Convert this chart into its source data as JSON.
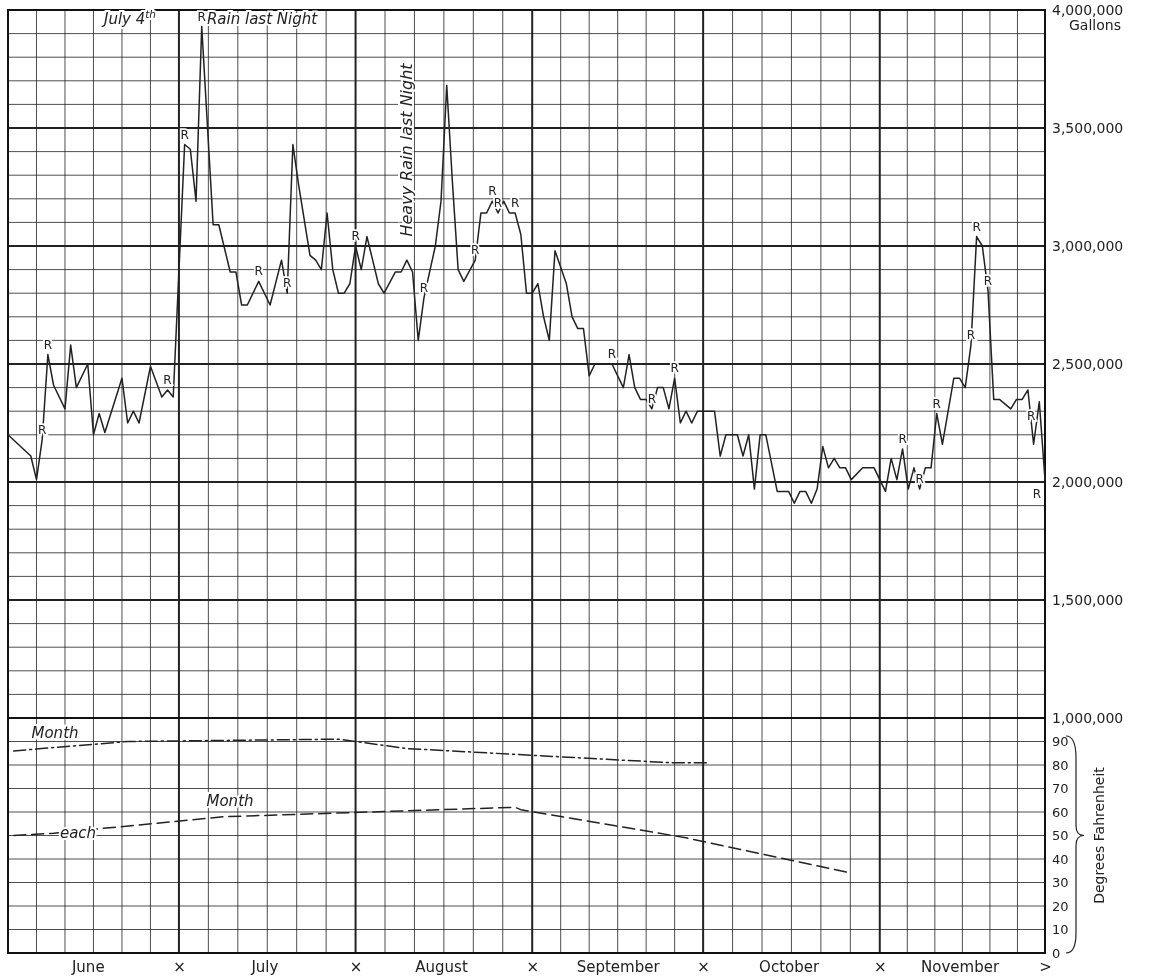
{
  "chart_data": [
    {
      "type": "line",
      "xlim": [
        "--06-01",
        "--11-30"
      ],
      "ylim": [
        1000000,
        4000000
      ],
      "xticks": [
        {
          "value": "--06-15",
          "label": null
        },
        {
          "value": "--07-01",
          "label": null
        },
        {
          "value": "--07-16",
          "label": null
        },
        {
          "value": "--08-01",
          "label": null
        },
        {
          "value": "--08-16",
          "label": null
        },
        {
          "value": "--09-01",
          "label": null
        },
        {
          "value": "--09-16",
          "label": null
        },
        {
          "value": "--10-01",
          "label": null
        },
        {
          "value": "--10-16",
          "label": null
        },
        {
          "value": "--11-01",
          "label": null
        },
        {
          "value": "--11-15",
          "label": null
        },
        {
          "value": "--11-30",
          "label": null
        }
      ],
      "yticks": [
        {
          "value": 1000000,
          "label": "1,000,000"
        },
        {
          "value": 1500000,
          "label": "1,500,000"
        },
        {
          "value": 2000000,
          "label": "2,000,000"
        },
        {
          "value": 2500000,
          "label": "2,500,000"
        },
        {
          "value": 3000000,
          "label": "3,000,000"
        },
        {
          "value": 3500000,
          "label": "3,500,000"
        },
        {
          "value": 4000000,
          "label": "4,000,000"
        }
      ],
      "ylabel": "Gallons",
      "grid": true,
      "tick_labels": "y",
      "series": [
        {
          "color": "#222222",
          "x": [
            "--06-01",
            "--06-05",
            "--06-06",
            "--06-07",
            "--06-08",
            "--06-09",
            "--06-11",
            "--06-12",
            "--06-13",
            "--06-15",
            "--06-16",
            "--06-17",
            "--06-18",
            "--06-21",
            "--06-22",
            "--06-23",
            "--06-24",
            "--06-26",
            "--06-28",
            "--06-29",
            "--06-30",
            "--07-02",
            "--07-03",
            "--07-04",
            "--07-05",
            "--07-07",
            "--07-08",
            "--07-10",
            "--07-11",
            "--07-12",
            "--07-13",
            "--07-15",
            "--07-17",
            "--07-19",
            "--07-20",
            "--07-21",
            "--07-22",
            "--07-24",
            "--07-25",
            "--07-26",
            "--07-27",
            "--07-28",
            "--07-29",
            "--07-30",
            "--07-31",
            "--08-01",
            "--08-02",
            "--08-03",
            "--08-04",
            "--08-05",
            "--08-06",
            "--08-08",
            "--08-09",
            "--08-10",
            "--08-11",
            "--08-12",
            "--08-13",
            "--08-14",
            "--08-15",
            "--08-16",
            "--08-17",
            "--08-18",
            "--08-19",
            "--08-20",
            "--08-22",
            "--08-23",
            "--08-24",
            "--08-25",
            "--08-26",
            "--08-27",
            "--08-28",
            "--08-29",
            "--08-30",
            "--08-31",
            "--09-01",
            "--09-02",
            "--09-03",
            "--09-04",
            "--09-05",
            "--09-07",
            "--09-08",
            "--09-09",
            "--09-10",
            "--09-11",
            "--09-12",
            "--09-15",
            "--09-17",
            "--09-18",
            "--09-19",
            "--09-20",
            "--09-21",
            "--09-22",
            "--09-23",
            "--09-24",
            "--09-25",
            "--09-26",
            "--09-27",
            "--09-28",
            "--09-29",
            "--09-30",
            "--10-03",
            "--10-04",
            "--10-05",
            "--10-07",
            "--10-08",
            "--10-09",
            "--10-10",
            "--10-11",
            "--10-12",
            "--10-14",
            "--10-16",
            "--10-17",
            "--10-18",
            "--10-19",
            "--10-20",
            "--10-21",
            "--10-22",
            "--10-23",
            "--10-24",
            "--10-25",
            "--10-26",
            "--10-27",
            "--10-29",
            "--10-31",
            "--11-01",
            "--11-02",
            "--11-03",
            "--11-04",
            "--11-05",
            "--11-06",
            "--11-07",
            "--11-08",
            "--11-09",
            "--11-10",
            "--11-11",
            "--11-12",
            "--11-14",
            "--11-15",
            "--11-16",
            "--11-17",
            "--11-18",
            "--11-19",
            "--11-20",
            "--11-21",
            "--11-22",
            "--11-24",
            "--11-25",
            "--11-26",
            "--11-27",
            "--11-28",
            "--11-29",
            "--11-30"
          ],
          "values": [
            2200000,
            2110000,
            2010000,
            2180000,
            2540000,
            2410000,
            2310000,
            2580000,
            2400000,
            2500000,
            2200000,
            2290000,
            2210000,
            2440000,
            2250000,
            2300000,
            2250000,
            2490000,
            2360000,
            2390000,
            2360000,
            3430000,
            3410000,
            3190000,
            3930000,
            3090000,
            3090000,
            2890000,
            2890000,
            2750000,
            2750000,
            2850000,
            2750000,
            2940000,
            2800000,
            3430000,
            3260000,
            2960000,
            2940000,
            2900000,
            3140000,
            2900000,
            2800000,
            2800000,
            2840000,
            3000000,
            2900000,
            3040000,
            2940000,
            2840000,
            2800000,
            2890000,
            2890000,
            2940000,
            2890000,
            2600000,
            2780000,
            2890000,
            3000000,
            3190000,
            3680000,
            3270000,
            2900000,
            2850000,
            2940000,
            3140000,
            3140000,
            3190000,
            3140000,
            3190000,
            3140000,
            3140000,
            3050000,
            2800000,
            2800000,
            2840000,
            2700000,
            2600000,
            2980000,
            2840000,
            2700000,
            2650000,
            2650000,
            2450000,
            2500000,
            2500000,
            2400000,
            2540000,
            2400000,
            2350000,
            2350000,
            2310000,
            2400000,
            2400000,
            2310000,
            2440000,
            2250000,
            2300000,
            2250000,
            2300000,
            2300000,
            2110000,
            2200000,
            2200000,
            2110000,
            2200000,
            1970000,
            2200000,
            2200000,
            1960000,
            1960000,
            1910000,
            1960000,
            1960000,
            1910000,
            1970000,
            2150000,
            2060000,
            2100000,
            2060000,
            2060000,
            2010000,
            2060000,
            2060000,
            2010000,
            1960000,
            2100000,
            2010000,
            2140000,
            1970000,
            2060000,
            1970000,
            2060000,
            2060000,
            2290000,
            2160000,
            2440000,
            2440000,
            2400000,
            2580000,
            3040000,
            3000000,
            2810000,
            2350000,
            2350000,
            2310000,
            2350000,
            2350000,
            2390000,
            2160000,
            2340000,
            2010000
          ]
        }
      ],
      "annotations": [
        "July 4$^{th}$",
        "Rain last Night",
        "Heavy Rain last Night",
        {
          "text": "R",
          "x": "--06-08",
          "y": 2540000
        },
        {
          "text": "R",
          "x": "--06-07",
          "y": 2180000
        },
        {
          "text": "R",
          "x": "--06-29",
          "y": 2390000
        },
        {
          "text": "R",
          "x": "--07-02",
          "y": 3430000
        },
        {
          "text": "R",
          "x": "--07-05",
          "y": 3930000
        },
        {
          "text": "R",
          "x": "--07-15",
          "y": 2850000
        },
        {
          "text": "R",
          "x": "--07-20",
          "y": 2800000
        },
        {
          "text": "R",
          "x": "--08-01",
          "y": 3000000
        },
        {
          "text": "R",
          "x": "--08-13",
          "y": 2780000
        },
        {
          "text": "R",
          "x": "--08-22",
          "y": 2940000
        },
        {
          "text": "R",
          "x": "--08-25",
          "y": 3190000
        },
        {
          "text": "R",
          "x": "--08-26",
          "y": 3140000
        },
        {
          "text": "R",
          "x": "--08-29",
          "y": 3140000
        },
        {
          "text": "R",
          "x": "--09-15",
          "y": 2500000
        },
        {
          "text": "R",
          "x": "--09-22",
          "y": 2310000
        },
        {
          "text": "R",
          "x": "--09-26",
          "y": 2440000
        },
        {
          "text": "R",
          "x": "--11-05",
          "y": 2140000
        },
        {
          "text": "R",
          "x": "--11-08",
          "y": 1970000
        },
        {
          "text": "R",
          "x": "--11-11",
          "y": 2290000
        },
        {
          "text": "R",
          "x": "--11-17",
          "y": 2580000
        },
        {
          "text": "R",
          "x": "--11-18",
          "y": 3040000
        },
        {
          "text": "R",
          "x": "--11-20",
          "y": 2810000
        },
        {
          "text": "R",
          "x": "--11-29",
          "y": 2340000
        },
        {
          "text": "R",
          "x": "--11-30",
          "y": 2010000
        }
      ]
    },
    {
      "type": "line",
      "xlim": [
        "--06-01",
        "--11-30"
      ],
      "ylim": [
        0,
        100
      ],
      "xticks": [
        {
          "value": "--06-15",
          "label": "June"
        },
        {
          "value": "--07-01",
          "label": "×"
        },
        {
          "value": "--07-16",
          "label": "July"
        },
        {
          "value": "--08-01",
          "label": "×"
        },
        {
          "value": "--08-16",
          "label": "August"
        },
        {
          "value": "--09-01",
          "label": "×"
        },
        {
          "value": "--09-16",
          "label": "September"
        },
        {
          "value": "--10-01",
          "label": "×"
        },
        {
          "value": "--10-16",
          "label": "October"
        },
        {
          "value": "--11-01",
          "label": "×"
        },
        {
          "value": "--11-15",
          "label": "November"
        },
        {
          "value": "--11-30",
          "label": ">"
        }
      ],
      "yticks": [
        0,
        10,
        20,
        30,
        40,
        50,
        60,
        70,
        80,
        90
      ],
      "ylabel": "Degrees Fahrenheit",
      "grid": true,
      "series": [
        {
          "color": "#222222",
          "line_style": "dashdot",
          "x": [
            "--06-02",
            "--06-22",
            "--07-29",
            "--08-10",
            "--09-25",
            "--10-02"
          ],
          "values": [
            86,
            90,
            91,
            87,
            81,
            81
          ]
        },
        {
          "color": "#222222",
          "line_style": "dashed",
          "x": [
            "--06-02",
            "--06-09",
            "--07-09",
            "--08-29",
            "--08-30",
            "--09-28",
            "--10-27"
          ],
          "values": [
            50,
            51,
            58,
            62,
            61,
            49,
            34
          ]
        }
      ],
      "annotations": [
        "Month",
        "each",
        "Month"
      ]
    }
  ]
}
